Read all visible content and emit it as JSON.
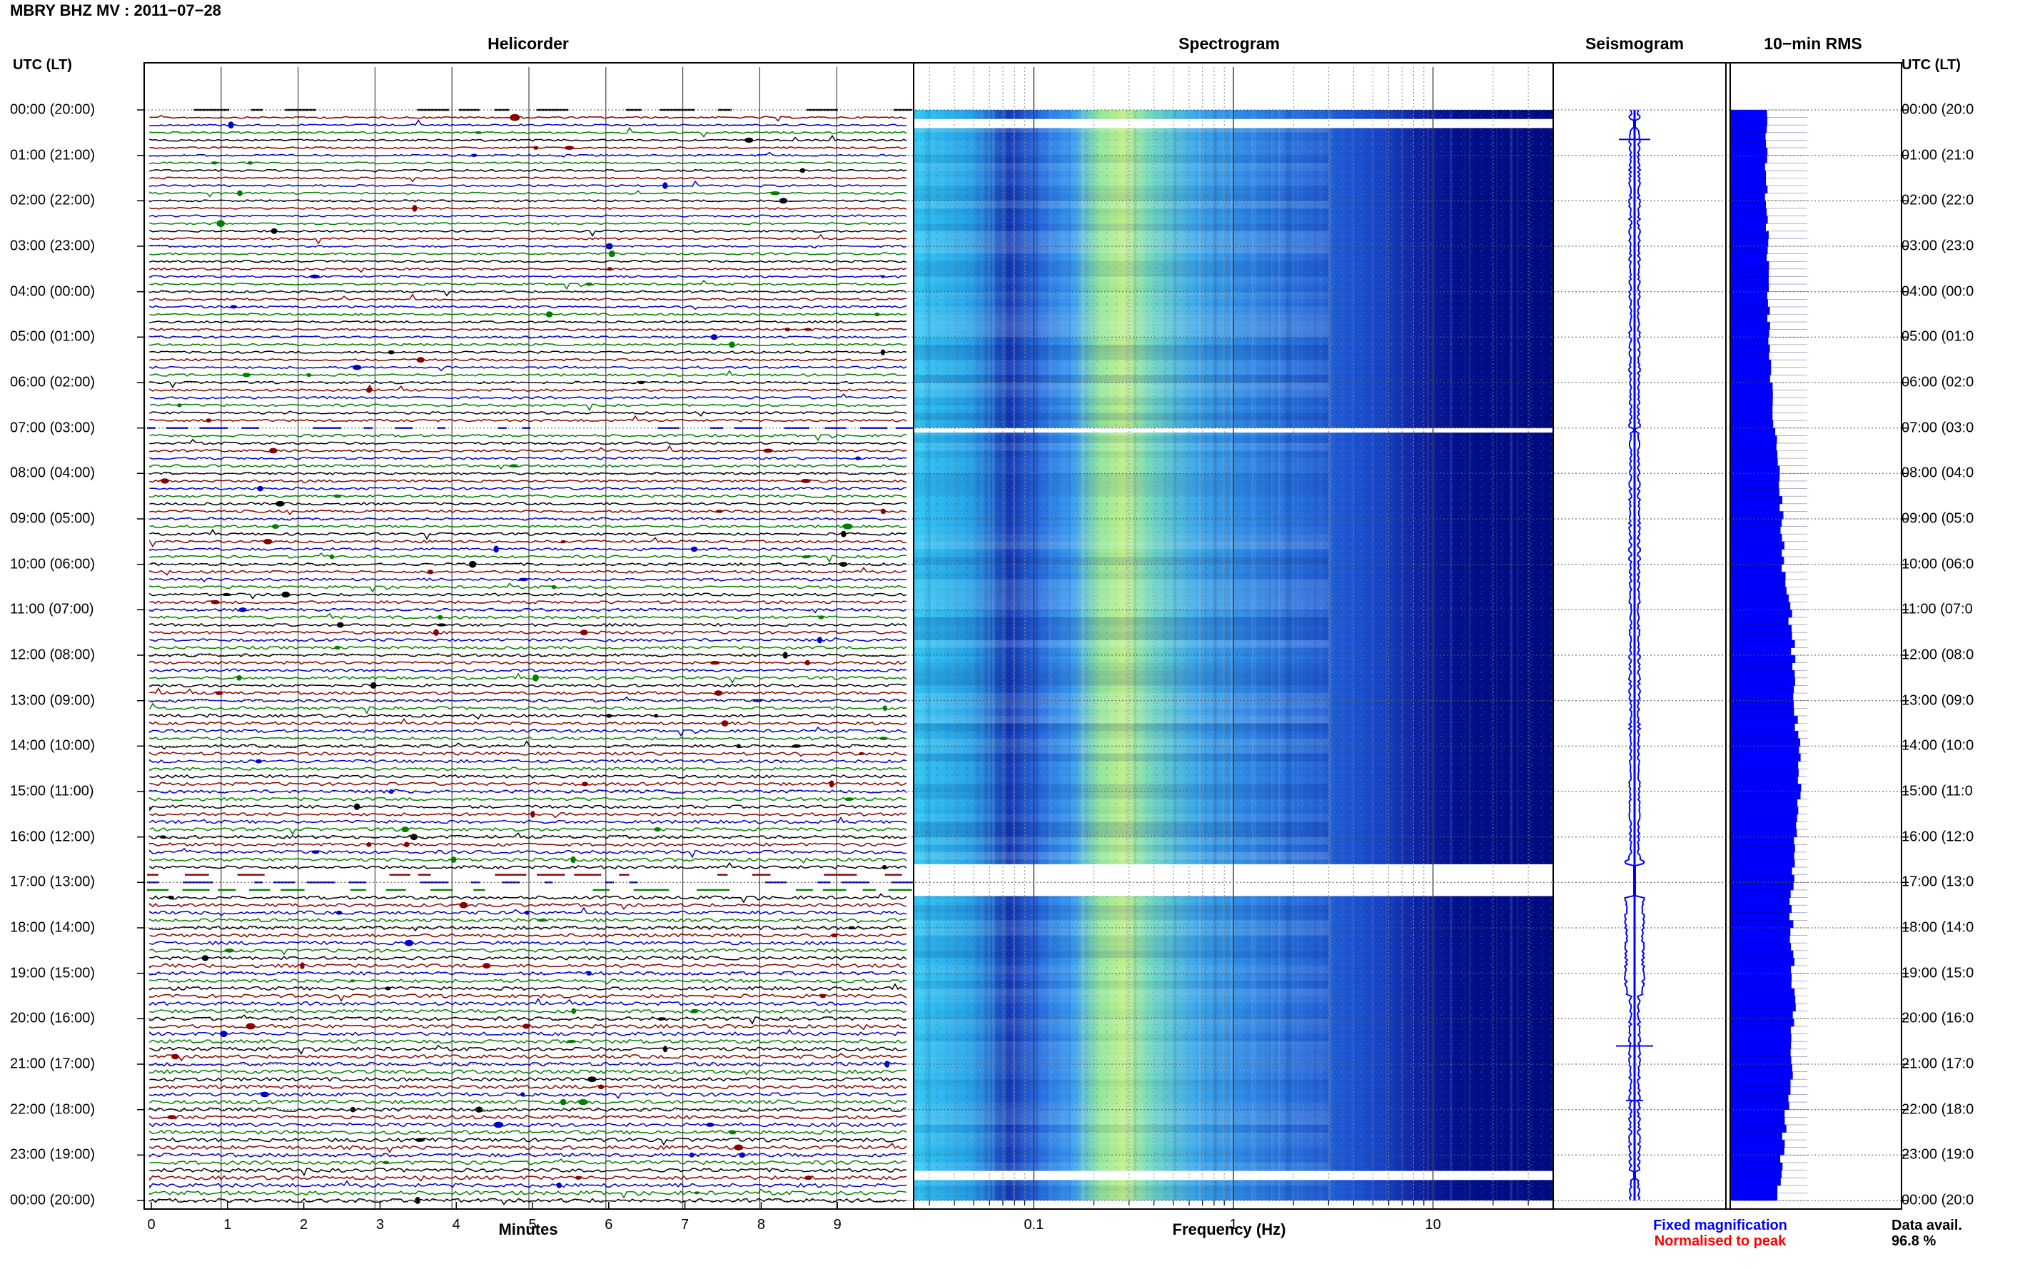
{
  "header": {
    "title": "MBRY BHZ MV : 2011−07−28",
    "utc_label_left": "UTC (LT)",
    "utc_label_right": "UTC (LT)"
  },
  "panels": {
    "helicorder": "Helicorder",
    "spectrogram": "Spectrogram",
    "seismogram": "Seismogram",
    "rms": "10−min RMS"
  },
  "row_labels": [
    "00:00 (20:00)",
    "01:00 (21:00)",
    "02:00 (22:00)",
    "03:00 (23:00)",
    "04:00 (00:00)",
    "05:00 (01:00)",
    "06:00 (02:00)",
    "07:00 (03:00)",
    "08:00 (04:00)",
    "09:00 (05:00)",
    "10:00 (06:00)",
    "11:00 (07:00)",
    "12:00 (08:00)",
    "13:00 (09:00)",
    "14:00 (10:00)",
    "15:00 (11:00)",
    "16:00 (12:00)",
    "17:00 (13:00)",
    "18:00 (14:00)",
    "19:00 (15:00)",
    "20:00 (16:00)",
    "21:00 (17:00)",
    "22:00 (18:00)",
    "23:00 (19:00)",
    "00:00 (20:00)"
  ],
  "row_labels_right": [
    "00:00 (20:0",
    "01:00 (21:0",
    "02:00 (22:0",
    "03:00 (23:0",
    "04:00 (00:0",
    "05:00 (01:0",
    "06:00 (02:0",
    "07:00 (03:0",
    "08:00 (04:0",
    "09:00 (05:0",
    "10:00 (06:0",
    "11:00 (07:0",
    "12:00 (08:0",
    "13:00 (09:0",
    "14:00 (10:0",
    "15:00 (11:0",
    "16:00 (12:0",
    "17:00 (13:0",
    "18:00 (14:0",
    "19:00 (15:0",
    "20:00 (16:0",
    "21:00 (17:0",
    "22:00 (18:0",
    "23:00 (19:0",
    "00:00 (20:0"
  ],
  "axes": {
    "helicorder_xlabel": "Minutes",
    "helicorder_ticks": [
      "0",
      "1",
      "2",
      "3",
      "4",
      "5",
      "6",
      "7",
      "8",
      "9"
    ],
    "spectrogram_xlabel": "Frequency (Hz)",
    "spectrogram_ticks": [
      "0.1",
      "1",
      "10"
    ]
  },
  "legend": {
    "fixed": "Fixed magnification",
    "normalised": "Normalised to peak",
    "fixed_color": "#0000ff",
    "normalised_color": "#ff0000"
  },
  "availability": {
    "label": "Data avail.",
    "value": "96.8 %"
  },
  "colors": {
    "trace_cycle": [
      "#000000",
      "#8b0000",
      "#0000cd",
      "#008000"
    ],
    "rms_fill": "#0000ff",
    "grid": "#999999"
  },
  "chart_data": [
    {
      "type": "line",
      "name": "helicorder",
      "title": "Helicorder",
      "xlabel": "Minutes",
      "xlim": [
        0,
        10
      ],
      "x_ticks": [
        0,
        1,
        2,
        3,
        4,
        5,
        6,
        7,
        8,
        9
      ],
      "rows_per_hour": 6,
      "minutes_per_row": 10,
      "hours": 24,
      "gaps_utc_hours": [
        [
          0.0,
          0.05
        ],
        [
          6.95,
          7.05
        ],
        [
          16.75,
          17.25
        ]
      ]
    },
    {
      "type": "heatmap",
      "name": "spectrogram",
      "title": "Spectrogram",
      "xlabel": "Frequency (Hz)",
      "x_scale": "log",
      "xlim": [
        0.025,
        40
      ],
      "x_ticks": [
        0.1,
        1,
        10
      ],
      "dominant_band_hz": [
        0.2,
        0.4
      ],
      "gaps_utc_hours": [
        [
          0.2,
          0.4
        ],
        [
          7.0,
          7.1
        ],
        [
          16.6,
          17.3
        ],
        [
          23.35,
          23.55
        ]
      ]
    },
    {
      "type": "line",
      "name": "seismogram",
      "title": "Seismogram",
      "hours": 24
    },
    {
      "type": "bar",
      "name": "10-min RMS",
      "title": "10−min RMS",
      "orientation": "horizontal",
      "rows_per_hour": 6,
      "hourly_relative_rms": [
        0.42,
        0.42,
        0.42,
        0.44,
        0.44,
        0.46,
        0.48,
        0.52,
        0.58,
        0.6,
        0.62,
        0.7,
        0.74,
        0.76,
        0.8,
        0.82,
        0.76,
        0.72,
        0.72,
        0.74,
        0.74,
        0.72,
        0.66,
        0.6,
        0.55
      ]
    }
  ]
}
